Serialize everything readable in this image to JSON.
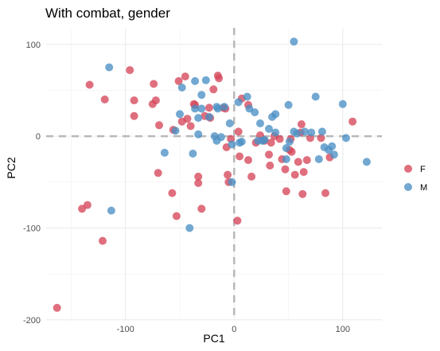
{
  "chart_data": {
    "type": "scatter",
    "title": "With combat, gender",
    "xlabel": "PC1",
    "ylabel": "PC2",
    "xlim": [
      -173,
      136
    ],
    "ylim": [
      -201,
      118
    ],
    "x_ticks": [
      -100,
      0,
      100
    ],
    "y_ticks": [
      -200,
      -100,
      0,
      100
    ],
    "x_tick_labels": [
      "-100",
      "0",
      "100"
    ],
    "y_tick_labels": [
      "-200",
      "-100",
      "0",
      "100"
    ],
    "grid": true,
    "reference_lines": {
      "x": 0,
      "y": 0,
      "style": "dashed"
    },
    "legend": {
      "position": "right"
    },
    "series": [
      {
        "name": "F",
        "color": "#D6465A",
        "points": [
          [
            -163,
            -187
          ],
          [
            -135,
            -75
          ],
          [
            -140,
            -79
          ],
          [
            -121,
            -114
          ],
          [
            -133,
            56
          ],
          [
            -119,
            40
          ],
          [
            -96,
            72
          ],
          [
            -92,
            39
          ],
          [
            -92,
            22
          ],
          [
            -74,
            57
          ],
          [
            -75,
            35
          ],
          [
            -72,
            39
          ],
          [
            -70,
            -40
          ],
          [
            -69,
            12
          ],
          [
            -57,
            -62
          ],
          [
            -56,
            7
          ],
          [
            -53,
            -87
          ],
          [
            -51,
            60
          ],
          [
            -48,
            16
          ],
          [
            -43,
            19
          ],
          [
            -45,
            65
          ],
          [
            -40,
            11
          ],
          [
            -36,
            34
          ],
          [
            -37,
            35
          ],
          [
            -33,
            -44
          ],
          [
            -33,
            -51
          ],
          [
            -30,
            -79
          ],
          [
            -27,
            22
          ],
          [
            -23,
            31
          ],
          [
            -22,
            20
          ],
          [
            -19,
            51
          ],
          [
            -15,
            66
          ],
          [
            -14,
            63
          ],
          [
            -10,
            31
          ],
          [
            -8,
            30
          ],
          [
            -7,
            -12
          ],
          [
            -6,
            -42
          ],
          [
            -5,
            -50
          ],
          [
            -3,
            -3
          ],
          [
            3,
            -92
          ],
          [
            4,
            5
          ],
          [
            5,
            -22
          ],
          [
            7,
            41
          ],
          [
            13,
            34
          ],
          [
            13,
            -26
          ],
          [
            16,
            -44
          ],
          [
            20,
            -7
          ],
          [
            24,
            1
          ],
          [
            28,
            -5
          ],
          [
            32,
            -20
          ],
          [
            33,
            -32
          ],
          [
            34,
            -7
          ],
          [
            37,
            0
          ],
          [
            42,
            -3
          ],
          [
            44,
            -25
          ],
          [
            47,
            -36
          ],
          [
            48,
            -60
          ],
          [
            51,
            -15
          ],
          [
            52,
            -3
          ],
          [
            53,
            -17
          ],
          [
            56,
            -42
          ],
          [
            59,
            -28
          ],
          [
            61,
            4
          ],
          [
            62,
            13
          ],
          [
            63,
            -63
          ],
          [
            64,
            -39
          ],
          [
            67,
            -26
          ],
          [
            70,
            -2
          ],
          [
            80,
            -2
          ],
          [
            84,
            -62
          ],
          [
            88,
            -23
          ],
          [
            109,
            16
          ]
        ]
      },
      {
        "name": "M",
        "color": "#4A90C4",
        "points": [
          [
            -115,
            75
          ],
          [
            -113,
            -81
          ],
          [
            -64,
            -18
          ],
          [
            -54,
            6
          ],
          [
            -50,
            24
          ],
          [
            -48,
            53
          ],
          [
            -41,
            -100
          ],
          [
            -38,
            -19
          ],
          [
            -36,
            30
          ],
          [
            -36,
            60
          ],
          [
            -33,
            2
          ],
          [
            -33,
            20
          ],
          [
            -30,
            30
          ],
          [
            -30,
            45
          ],
          [
            -26,
            61
          ],
          [
            -23,
            21
          ],
          [
            -18,
            0
          ],
          [
            -16,
            32
          ],
          [
            -16,
            -5
          ],
          [
            -15,
            30
          ],
          [
            -12,
            -1
          ],
          [
            -9,
            32
          ],
          [
            -4,
            14
          ],
          [
            -2,
            -9
          ],
          [
            -2,
            -50
          ],
          [
            4,
            37
          ],
          [
            5,
            -7
          ],
          [
            7,
            -6
          ],
          [
            12,
            43
          ],
          [
            14,
            30
          ],
          [
            19,
            26
          ],
          [
            22,
            -5
          ],
          [
            24,
            14
          ],
          [
            26,
            -5
          ],
          [
            28,
            -4
          ],
          [
            32,
            8
          ],
          [
            35,
            21
          ],
          [
            38,
            24
          ],
          [
            38,
            4
          ],
          [
            48,
            -13
          ],
          [
            48,
            -25
          ],
          [
            50,
            34
          ],
          [
            51,
            -6
          ],
          [
            55,
            103
          ],
          [
            55,
            5
          ],
          [
            58,
            3
          ],
          [
            65,
            5
          ],
          [
            71,
            4
          ],
          [
            75,
            43
          ],
          [
            78,
            -25
          ],
          [
            81,
            5
          ],
          [
            83,
            -12
          ],
          [
            87,
            -15
          ],
          [
            90,
            -11
          ],
          [
            92,
            -20
          ],
          [
            100,
            35
          ],
          [
            103,
            -2
          ],
          [
            122,
            -28
          ]
        ]
      }
    ]
  }
}
